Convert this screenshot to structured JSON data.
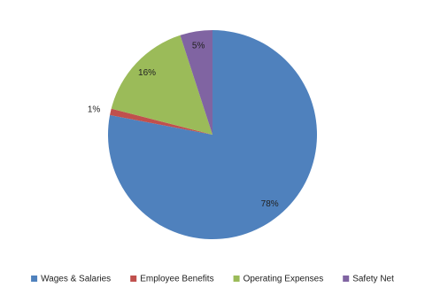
{
  "chart_data": {
    "type": "pie",
    "categories": [
      "Wages & Salaries",
      "Employee Benefits",
      "Operating Expenses",
      "Safety Net"
    ],
    "values": [
      78,
      1,
      16,
      5
    ],
    "value_labels": [
      "78%",
      "1%",
      "16%",
      "5%"
    ],
    "colors": [
      "#4f81bd",
      "#c0504d",
      "#9bbb59",
      "#8064a2"
    ],
    "legend": "bottom"
  }
}
